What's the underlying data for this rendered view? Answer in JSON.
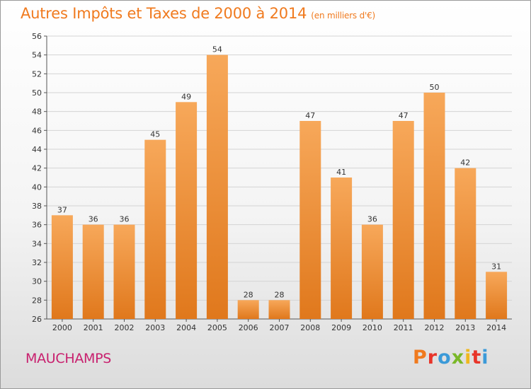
{
  "title": "Autres Impôts et Taxes de 2000 à 2014",
  "title_unit": "(en milliers d'€)",
  "place": "MAUCHAMPS",
  "brand": "Proxiti",
  "colors": {
    "title": "#f07a1e",
    "place": "#c8206e",
    "bar_light": "#f7a85a",
    "bar_dark": "#e0781c",
    "brand_letters": [
      "#f07a1e",
      "#e8352a",
      "#3b9ad8",
      "#7ab828",
      "#f0b81e",
      "#e8352a",
      "#3b9ad8"
    ]
  },
  "chart_data": {
    "type": "bar",
    "categories": [
      "2000",
      "2001",
      "2002",
      "2003",
      "2004",
      "2005",
      "2006",
      "2007",
      "2008",
      "2009",
      "2010",
      "2011",
      "2012",
      "2013",
      "2014"
    ],
    "values": [
      37,
      36,
      36,
      45,
      49,
      54,
      28,
      28,
      47,
      41,
      36,
      47,
      50,
      42,
      31
    ],
    "ylim": [
      26,
      56
    ],
    "yticks": [
      26,
      28,
      30,
      32,
      34,
      36,
      38,
      40,
      42,
      44,
      46,
      48,
      50,
      52,
      54,
      56
    ],
    "grid": true,
    "data_labels": true
  }
}
